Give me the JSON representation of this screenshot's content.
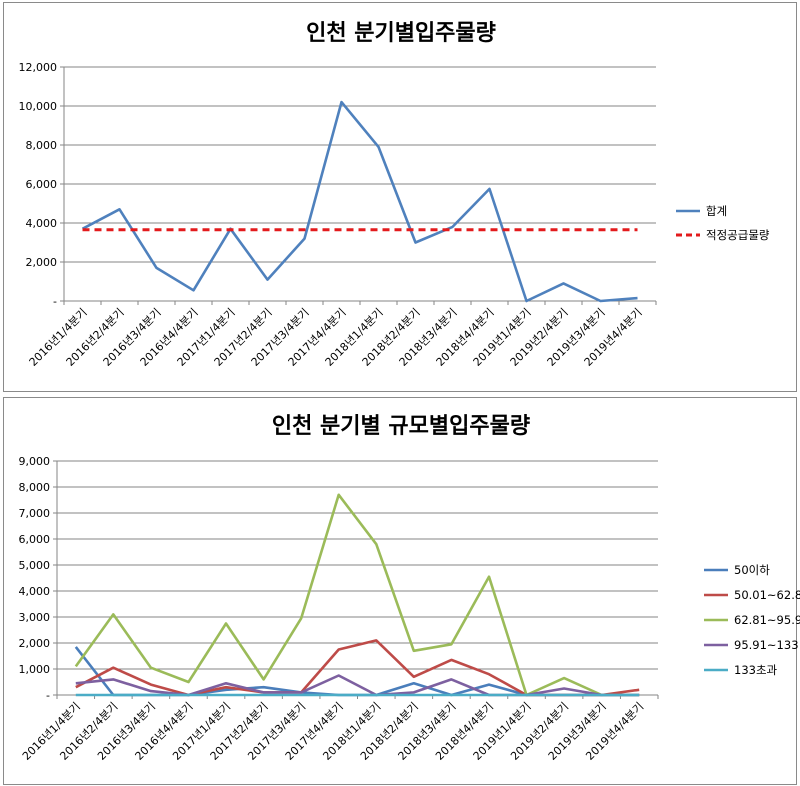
{
  "chart_data": [
    {
      "type": "line",
      "title": "인천 분기별입주물량",
      "categories": [
        "2016년1/4분기",
        "2016년2/4분기",
        "2016년3/4분기",
        "2016년4/4분기",
        "2017년1/4분기",
        "2017년2/4분기",
        "2017년3/4분기",
        "2017년4/4분기",
        "2018년1/4분기",
        "2018년2/4분기",
        "2018년3/4분기",
        "2018년4/4분기",
        "2019년1/4분기",
        "2019년2/4분기",
        "2019년3/4분기",
        "2019년4/4분기"
      ],
      "yticks": [
        "-",
        "2,000",
        "4,000",
        "6,000",
        "8,000",
        "10,000",
        "12,000"
      ],
      "ylim": [
        0,
        12000
      ],
      "legend_position": "right",
      "grid": true,
      "series": [
        {
          "name": "합계",
          "color": "#4f81bd",
          "dashed": false,
          "values": [
            3700,
            4700,
            1700,
            550,
            3700,
            1100,
            3200,
            10200,
            7900,
            3000,
            3800,
            5750,
            0,
            900,
            0,
            150
          ]
        },
        {
          "name": "적정공급물량",
          "color": "#e31a1c",
          "dashed": true,
          "values": [
            3650,
            3650,
            3650,
            3650,
            3650,
            3650,
            3650,
            3650,
            3650,
            3650,
            3650,
            3650,
            3650,
            3650,
            3650,
            3650
          ]
        }
      ]
    },
    {
      "type": "line",
      "title": "인천 분기별 규모별입주물량",
      "categories": [
        "2016년1/4분기",
        "2016년2/4분기",
        "2016년3/4분기",
        "2016년4/4분기",
        "2017년1/4분기",
        "2017년2/4분기",
        "2017년3/4분기",
        "2017년4/4분기",
        "2018년1/4분기",
        "2018년2/4분기",
        "2018년3/4분기",
        "2018년4/4분기",
        "2019년1/4분기",
        "2019년2/4분기",
        "2019년3/4분기",
        "2019년4/4분기"
      ],
      "yticks": [
        "-",
        "1,000",
        "2,000",
        "3,000",
        "4,000",
        "5,000",
        "6,000",
        "7,000",
        "8,000",
        "9,000"
      ],
      "ylim": [
        0,
        9000
      ],
      "legend_position": "right",
      "grid": true,
      "series": [
        {
          "name": "50이하",
          "color": "#4a7ebb",
          "dashed": false,
          "values": [
            1850,
            0,
            0,
            0,
            200,
            300,
            100,
            0,
            0,
            450,
            0,
            400,
            0,
            0,
            0,
            0
          ]
        },
        {
          "name": "50.01~62.8",
          "color": "#be4b48",
          "dashed": false,
          "values": [
            300,
            1050,
            400,
            0,
            300,
            100,
            100,
            1750,
            2100,
            700,
            1350,
            800,
            0,
            0,
            0,
            200
          ]
        },
        {
          "name": "62.81~95.9",
          "color": "#9bbb59",
          "dashed": false,
          "values": [
            1100,
            3100,
            1050,
            500,
            2750,
            600,
            2950,
            7700,
            5800,
            1700,
            1950,
            4550,
            0,
            650,
            0,
            0
          ]
        },
        {
          "name": "95.91~133",
          "color": "#7d60a0",
          "dashed": false,
          "values": [
            450,
            600,
            150,
            0,
            450,
            100,
            100,
            750,
            0,
            100,
            600,
            0,
            0,
            250,
            0,
            0
          ]
        },
        {
          "name": "133초과",
          "color": "#4bacc6",
          "dashed": false,
          "values": [
            0,
            0,
            0,
            0,
            0,
            0,
            0,
            0,
            0,
            0,
            0,
            0,
            0,
            0,
            0,
            0
          ]
        }
      ]
    }
  ]
}
